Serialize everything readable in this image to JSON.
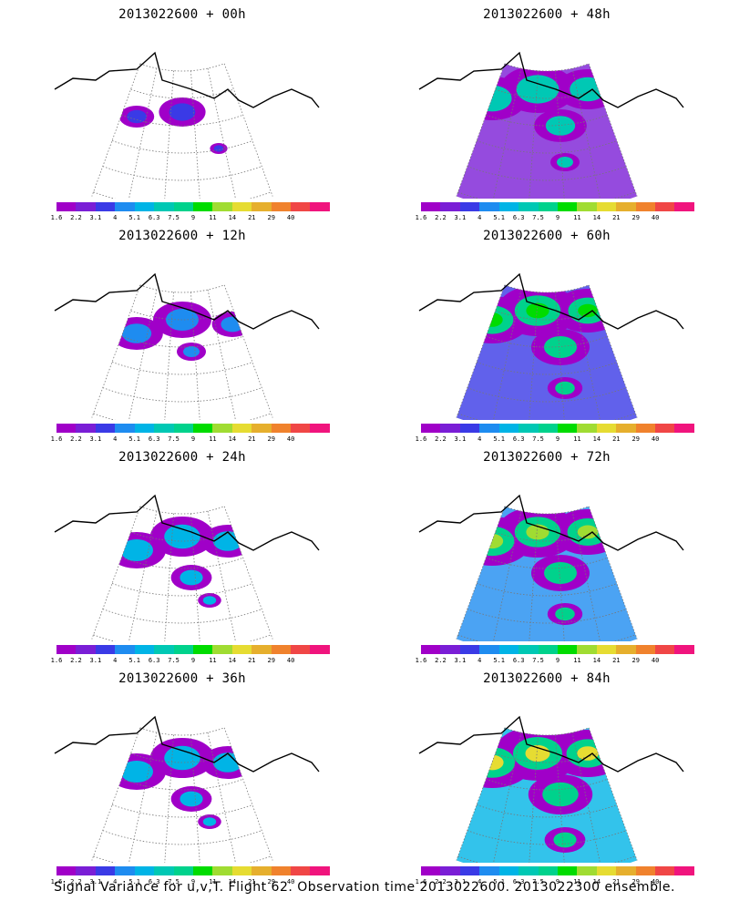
{
  "panels": [
    {
      "title": "2013022600 + 00h",
      "level": 0
    },
    {
      "title": "2013022600 + 48h",
      "level": 3
    },
    {
      "title": "2013022600 + 12h",
      "level": 1
    },
    {
      "title": "2013022600 + 60h",
      "level": 4
    },
    {
      "title": "2013022600 + 24h",
      "level": 2
    },
    {
      "title": "2013022600 + 72h",
      "level": 5
    },
    {
      "title": "2013022600 + 36h",
      "level": 2
    },
    {
      "title": "2013022600 + 84h",
      "level": 6
    }
  ],
  "colorbar": {
    "labels": [
      "1.6",
      "2.2",
      "3.1",
      "4",
      "5.1",
      "6.3",
      "7.5",
      "9",
      "11",
      "14",
      "21",
      "29",
      "40"
    ],
    "colors": [
      "#a000c8",
      "#7a1ed6",
      "#3a3ae6",
      "#1e8cf0",
      "#00b4e6",
      "#00c8b4",
      "#00d28c",
      "#00dc00",
      "#a0dc32",
      "#e6dc32",
      "#e6af2d",
      "#f0822d",
      "#f04646",
      "#f0147d"
    ]
  },
  "caption": "Signal Variance for u,v,T. Flight 62. Observation time 2013022600. 2013022300 ensemble."
}
